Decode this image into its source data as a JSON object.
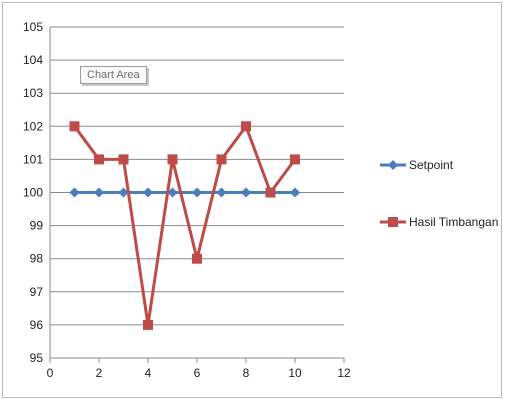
{
  "tooltip": "Chart Area",
  "chart_data": {
    "type": "line",
    "title": "",
    "xlabel": "",
    "ylabel": "",
    "xlim": [
      0,
      12
    ],
    "ylim": [
      95,
      105
    ],
    "x_ticks": [
      0,
      2,
      4,
      6,
      8,
      10,
      12
    ],
    "y_ticks": [
      95,
      96,
      97,
      98,
      99,
      100,
      101,
      102,
      103,
      104,
      105
    ],
    "grid": "horizontal",
    "legend_position": "right",
    "series": [
      {
        "name": "Setpoint",
        "color": "#4a7ebb",
        "marker": "diamond",
        "x": [
          1,
          2,
          3,
          4,
          5,
          6,
          7,
          8,
          9,
          10
        ],
        "y": [
          100,
          100,
          100,
          100,
          100,
          100,
          100,
          100,
          100,
          100
        ]
      },
      {
        "name": "Hasil Timbangan",
        "color": "#be4b48",
        "marker": "square",
        "x": [
          1,
          2,
          3,
          4,
          5,
          6,
          7,
          8,
          9,
          10
        ],
        "y": [
          102,
          101,
          101,
          96,
          101,
          98,
          101,
          102,
          100,
          101
        ]
      }
    ]
  }
}
